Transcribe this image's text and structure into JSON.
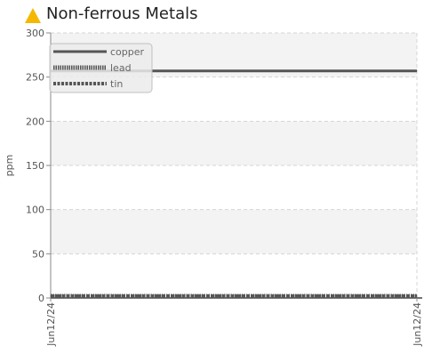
{
  "panel": {
    "title": "Non-ferrous Metals",
    "icon": "warning-triangle-icon",
    "icon_color": "#f5b800"
  },
  "chart_data": {
    "type": "line",
    "title": "Non-ferrous Metals",
    "xlabel": "",
    "ylabel": "ppm",
    "x": [
      "Jun12/24",
      "Jun12/24"
    ],
    "x_tick_labels": [
      "Jun12/24",
      "Jun12/24"
    ],
    "ylim": [
      0,
      300
    ],
    "y_ticks": [
      0,
      50,
      100,
      150,
      200,
      250,
      300
    ],
    "grid": true,
    "legend_position": "top-left",
    "series": [
      {
        "name": "copper",
        "values": [
          257,
          257
        ],
        "color": "#555555",
        "style": "solid"
      },
      {
        "name": "lead",
        "values": [
          2,
          2
        ],
        "color": "#555555",
        "style": "dotted"
      },
      {
        "name": "tin",
        "values": [
          2,
          2
        ],
        "color": "#555555",
        "style": "dashed"
      }
    ]
  }
}
